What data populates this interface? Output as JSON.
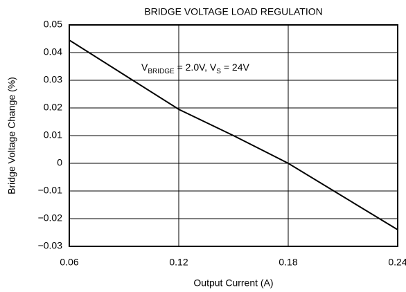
{
  "chart_data": {
    "type": "line",
    "title": "BRIDGE VOLTAGE LOAD REGULATION",
    "xlabel": "Output Current (A)",
    "ylabel": "Bridge Voltage Change (%)",
    "annotation": [
      {
        "text": "V"
      },
      {
        "text": "BRIDGE",
        "sub": true
      },
      {
        "text": " = 2.0V, V"
      },
      {
        "text": "S",
        "sub": true
      },
      {
        "text": " = 24V"
      }
    ],
    "x": [
      0.06,
      0.09,
      0.12,
      0.15,
      0.18,
      0.21,
      0.24
    ],
    "series": [
      {
        "name": null,
        "color": "#000000",
        "values": [
          0.0445,
          0.032,
          0.0195,
          0.01,
          0,
          -0.012,
          -0.024
        ]
      }
    ],
    "xlim": [
      0.06,
      0.24
    ],
    "xticks": [
      0.06,
      0.12,
      0.18,
      0.24
    ],
    "ylim": [
      -0.03,
      0.05
    ],
    "yticks": [
      {
        "value": -0.03,
        "label": "−0.03"
      },
      {
        "value": -0.02,
        "label": "−0.02"
      },
      {
        "value": -0.01,
        "label": "−0.01"
      },
      0,
      0.01,
      0.02,
      0.03,
      0.04,
      0.05
    ],
    "grid": true
  }
}
